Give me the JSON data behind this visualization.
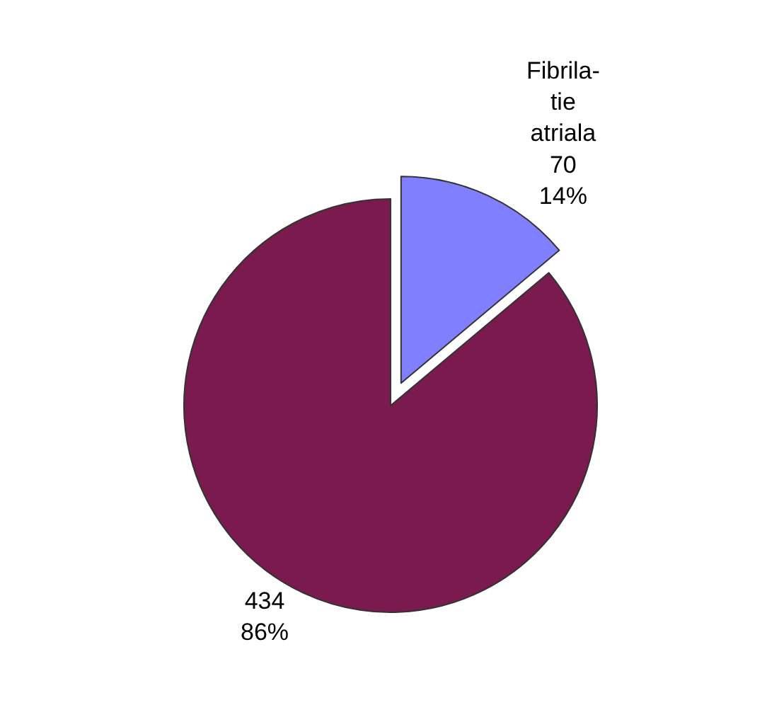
{
  "chart_data": {
    "type": "pie",
    "categories": [
      "Fibrila-\ntie\natriala",
      null
    ],
    "values": [
      70,
      434
    ],
    "value_labels": [
      "70\n14%",
      "434\n86%"
    ],
    "colors": [
      "#8080ff",
      "#7b1a4f"
    ],
    "legend": false
  }
}
